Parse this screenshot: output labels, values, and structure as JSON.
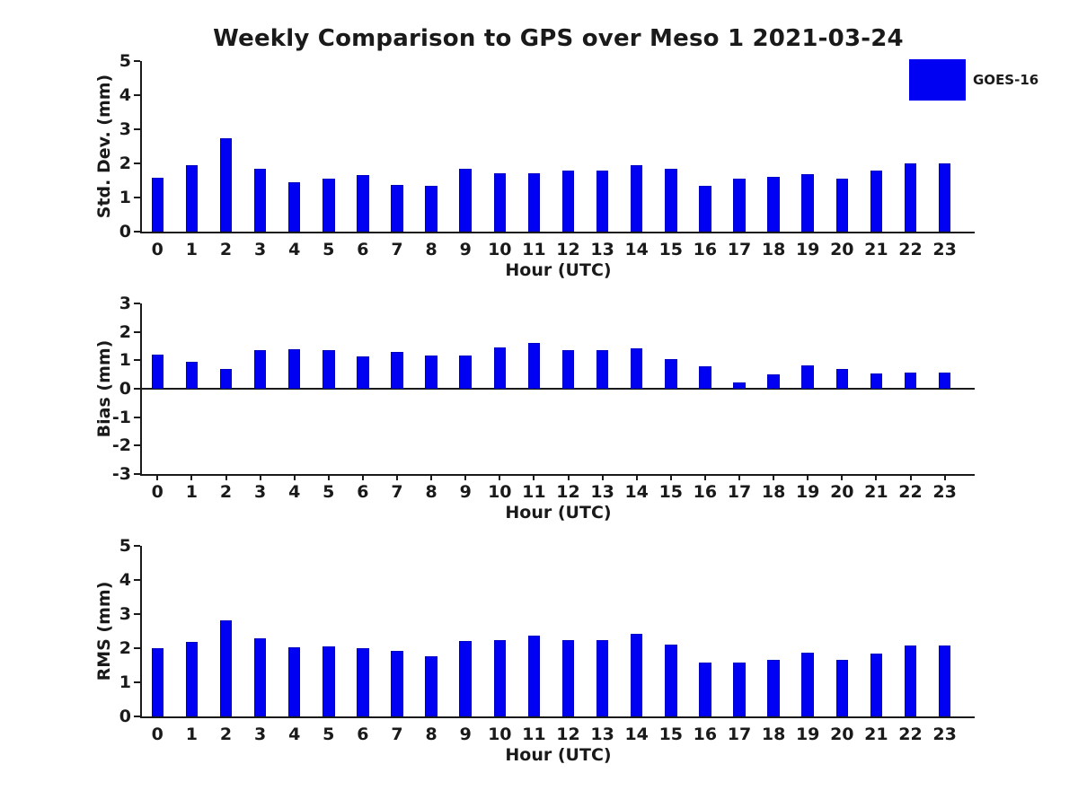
{
  "title": "Weekly Comparison to GPS over Meso 1 2021-03-24",
  "legend": {
    "label": "GOES-16",
    "swatch_color": "#0000f2",
    "position": "top-right"
  },
  "colors": {
    "bar": "#0000f2",
    "bar_edge": "#0000c4",
    "axis": "#1a1a1a",
    "text": "#1a1a1a",
    "background": "#ffffff"
  },
  "chart_data": [
    {
      "type": "bar",
      "title": "",
      "ylabel": "Std. Dev. (mm)",
      "xlabel": "Hour (UTC)",
      "ylim": [
        0,
        5
      ],
      "yticks": [
        0,
        1,
        2,
        3,
        4,
        5
      ],
      "grid": false,
      "categories": [
        "0",
        "1",
        "2",
        "3",
        "4",
        "5",
        "6",
        "7",
        "8",
        "9",
        "10",
        "11",
        "12",
        "13",
        "14",
        "15",
        "16",
        "17",
        "18",
        "19",
        "20",
        "21",
        "22",
        "23"
      ],
      "series_name": "GOES-16",
      "values": [
        1.58,
        1.95,
        2.75,
        1.85,
        1.45,
        1.55,
        1.65,
        1.38,
        1.33,
        1.85,
        1.72,
        1.72,
        1.8,
        1.8,
        1.95,
        1.83,
        1.35,
        1.55,
        1.6,
        1.68,
        1.55,
        1.78,
        2.0,
        2.0
      ]
    },
    {
      "type": "bar",
      "title": "",
      "ylabel": "Bias (mm)",
      "xlabel": "Hour (UTC)",
      "ylim": [
        -3,
        3
      ],
      "yticks": [
        3,
        2,
        1,
        0,
        -1,
        -2,
        -3
      ],
      "grid": false,
      "categories": [
        "0",
        "1",
        "2",
        "3",
        "4",
        "5",
        "6",
        "7",
        "8",
        "9",
        "10",
        "11",
        "12",
        "13",
        "14",
        "15",
        "16",
        "17",
        "18",
        "19",
        "20",
        "21",
        "22",
        "23"
      ],
      "series_name": "GOES-16",
      "values": [
        1.2,
        0.95,
        0.68,
        1.35,
        1.38,
        1.35,
        1.13,
        1.3,
        1.17,
        1.17,
        1.45,
        1.6,
        1.35,
        1.35,
        1.43,
        1.05,
        0.8,
        0.22,
        0.52,
        0.83,
        0.68,
        0.55,
        0.57,
        0.57
      ]
    },
    {
      "type": "bar",
      "title": "",
      "ylabel": "RMS (mm)",
      "xlabel": "Hour (UTC)",
      "ylim": [
        0,
        5
      ],
      "yticks": [
        0,
        1,
        2,
        3,
        4,
        5
      ],
      "grid": false,
      "categories": [
        "0",
        "1",
        "2",
        "3",
        "4",
        "5",
        "6",
        "7",
        "8",
        "9",
        "10",
        "11",
        "12",
        "13",
        "14",
        "15",
        "16",
        "17",
        "18",
        "19",
        "20",
        "21",
        "22",
        "23"
      ],
      "series_name": "GOES-16",
      "values": [
        2.0,
        2.18,
        2.82,
        2.28,
        2.03,
        2.05,
        2.0,
        1.93,
        1.77,
        2.2,
        2.25,
        2.37,
        2.25,
        2.25,
        2.42,
        2.1,
        1.57,
        1.57,
        1.67,
        1.88,
        1.67,
        1.83,
        2.07,
        2.08
      ]
    }
  ]
}
